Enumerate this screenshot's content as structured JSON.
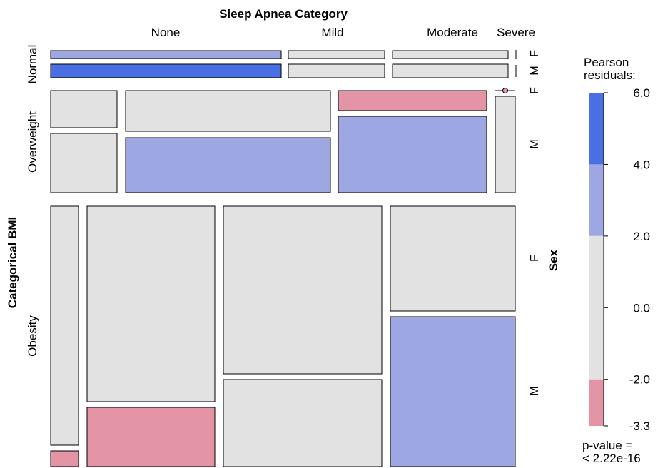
{
  "chart_data": {
    "type": "mosaic",
    "title": "Sleep Apnea Category",
    "xlabel": "Sleep Apnea Category",
    "ylabel": "Categorical BMI",
    "third_variable": "Sex",
    "apnea_categories": [
      "None",
      "Mild",
      "Moderate",
      "Severe"
    ],
    "bmi_categories": [
      "Normal",
      "Overweight",
      "Obesity"
    ],
    "sex_categories": [
      "F",
      "M"
    ],
    "legend": {
      "title_line1": "Pearson",
      "title_line2": "residuals:",
      "tick_labels": [
        "6.0",
        "4.0",
        "2.0",
        "0.0",
        "-2.0",
        "-3.3"
      ],
      "range": [
        -3.3,
        6.0
      ],
      "bands": [
        {
          "from": 4,
          "to": 6,
          "color": "#4A6FE3"
        },
        {
          "from": 2,
          "to": 4,
          "color": "#9DA8E2"
        },
        {
          "from": -2,
          "to": 2,
          "color": "#E2E2E2"
        },
        {
          "from": -4,
          "to": -2,
          "color": "#E495A5"
        }
      ]
    },
    "p_value_label": "p-value =",
    "p_value": "< 2.22e-16",
    "cells": [
      {
        "bmi": "Normal",
        "apnea": "None",
        "sex": "F",
        "residual": 3
      },
      {
        "bmi": "Normal",
        "apnea": "None",
        "sex": "M",
        "residual": 5
      },
      {
        "bmi": "Normal",
        "apnea": "Mild",
        "sex": "F",
        "residual": 0
      },
      {
        "bmi": "Normal",
        "apnea": "Mild",
        "sex": "M",
        "residual": 0
      },
      {
        "bmi": "Normal",
        "apnea": "Moderate",
        "sex": "F",
        "residual": 0
      },
      {
        "bmi": "Normal",
        "apnea": "Moderate",
        "sex": "M",
        "residual": 0
      },
      {
        "bmi": "Normal",
        "apnea": "Severe",
        "sex": "F",
        "residual": 0
      },
      {
        "bmi": "Normal",
        "apnea": "Severe",
        "sex": "M",
        "residual": 0
      },
      {
        "bmi": "Overweight",
        "apnea": "None",
        "sex": "F",
        "residual": 0
      },
      {
        "bmi": "Overweight",
        "apnea": "None",
        "sex": "M",
        "residual": 0
      },
      {
        "bmi": "Overweight",
        "apnea": "Mild",
        "sex": "F",
        "residual": 0
      },
      {
        "bmi": "Overweight",
        "apnea": "Mild",
        "sex": "M",
        "residual": 3
      },
      {
        "bmi": "Overweight",
        "apnea": "Moderate",
        "sex": "F",
        "residual": -3
      },
      {
        "bmi": "Overweight",
        "apnea": "Moderate",
        "sex": "M",
        "residual": 3
      },
      {
        "bmi": "Overweight",
        "apnea": "Severe",
        "sex": "F",
        "residual": -3
      },
      {
        "bmi": "Overweight",
        "apnea": "Severe",
        "sex": "M",
        "residual": 0
      },
      {
        "bmi": "Obesity",
        "apnea": "None",
        "sex": "F",
        "residual": 0
      },
      {
        "bmi": "Obesity",
        "apnea": "None",
        "sex": "M",
        "residual": -3
      },
      {
        "bmi": "Obesity",
        "apnea": "Mild",
        "sex": "F",
        "residual": 0
      },
      {
        "bmi": "Obesity",
        "apnea": "Mild",
        "sex": "M",
        "residual": -3
      },
      {
        "bmi": "Obesity",
        "apnea": "Moderate",
        "sex": "F",
        "residual": 0
      },
      {
        "bmi": "Obesity",
        "apnea": "Moderate",
        "sex": "M",
        "residual": 0
      },
      {
        "bmi": "Obesity",
        "apnea": "Severe",
        "sex": "F",
        "residual": 0
      },
      {
        "bmi": "Obesity",
        "apnea": "Severe",
        "sex": "M",
        "residual": 3
      }
    ]
  }
}
